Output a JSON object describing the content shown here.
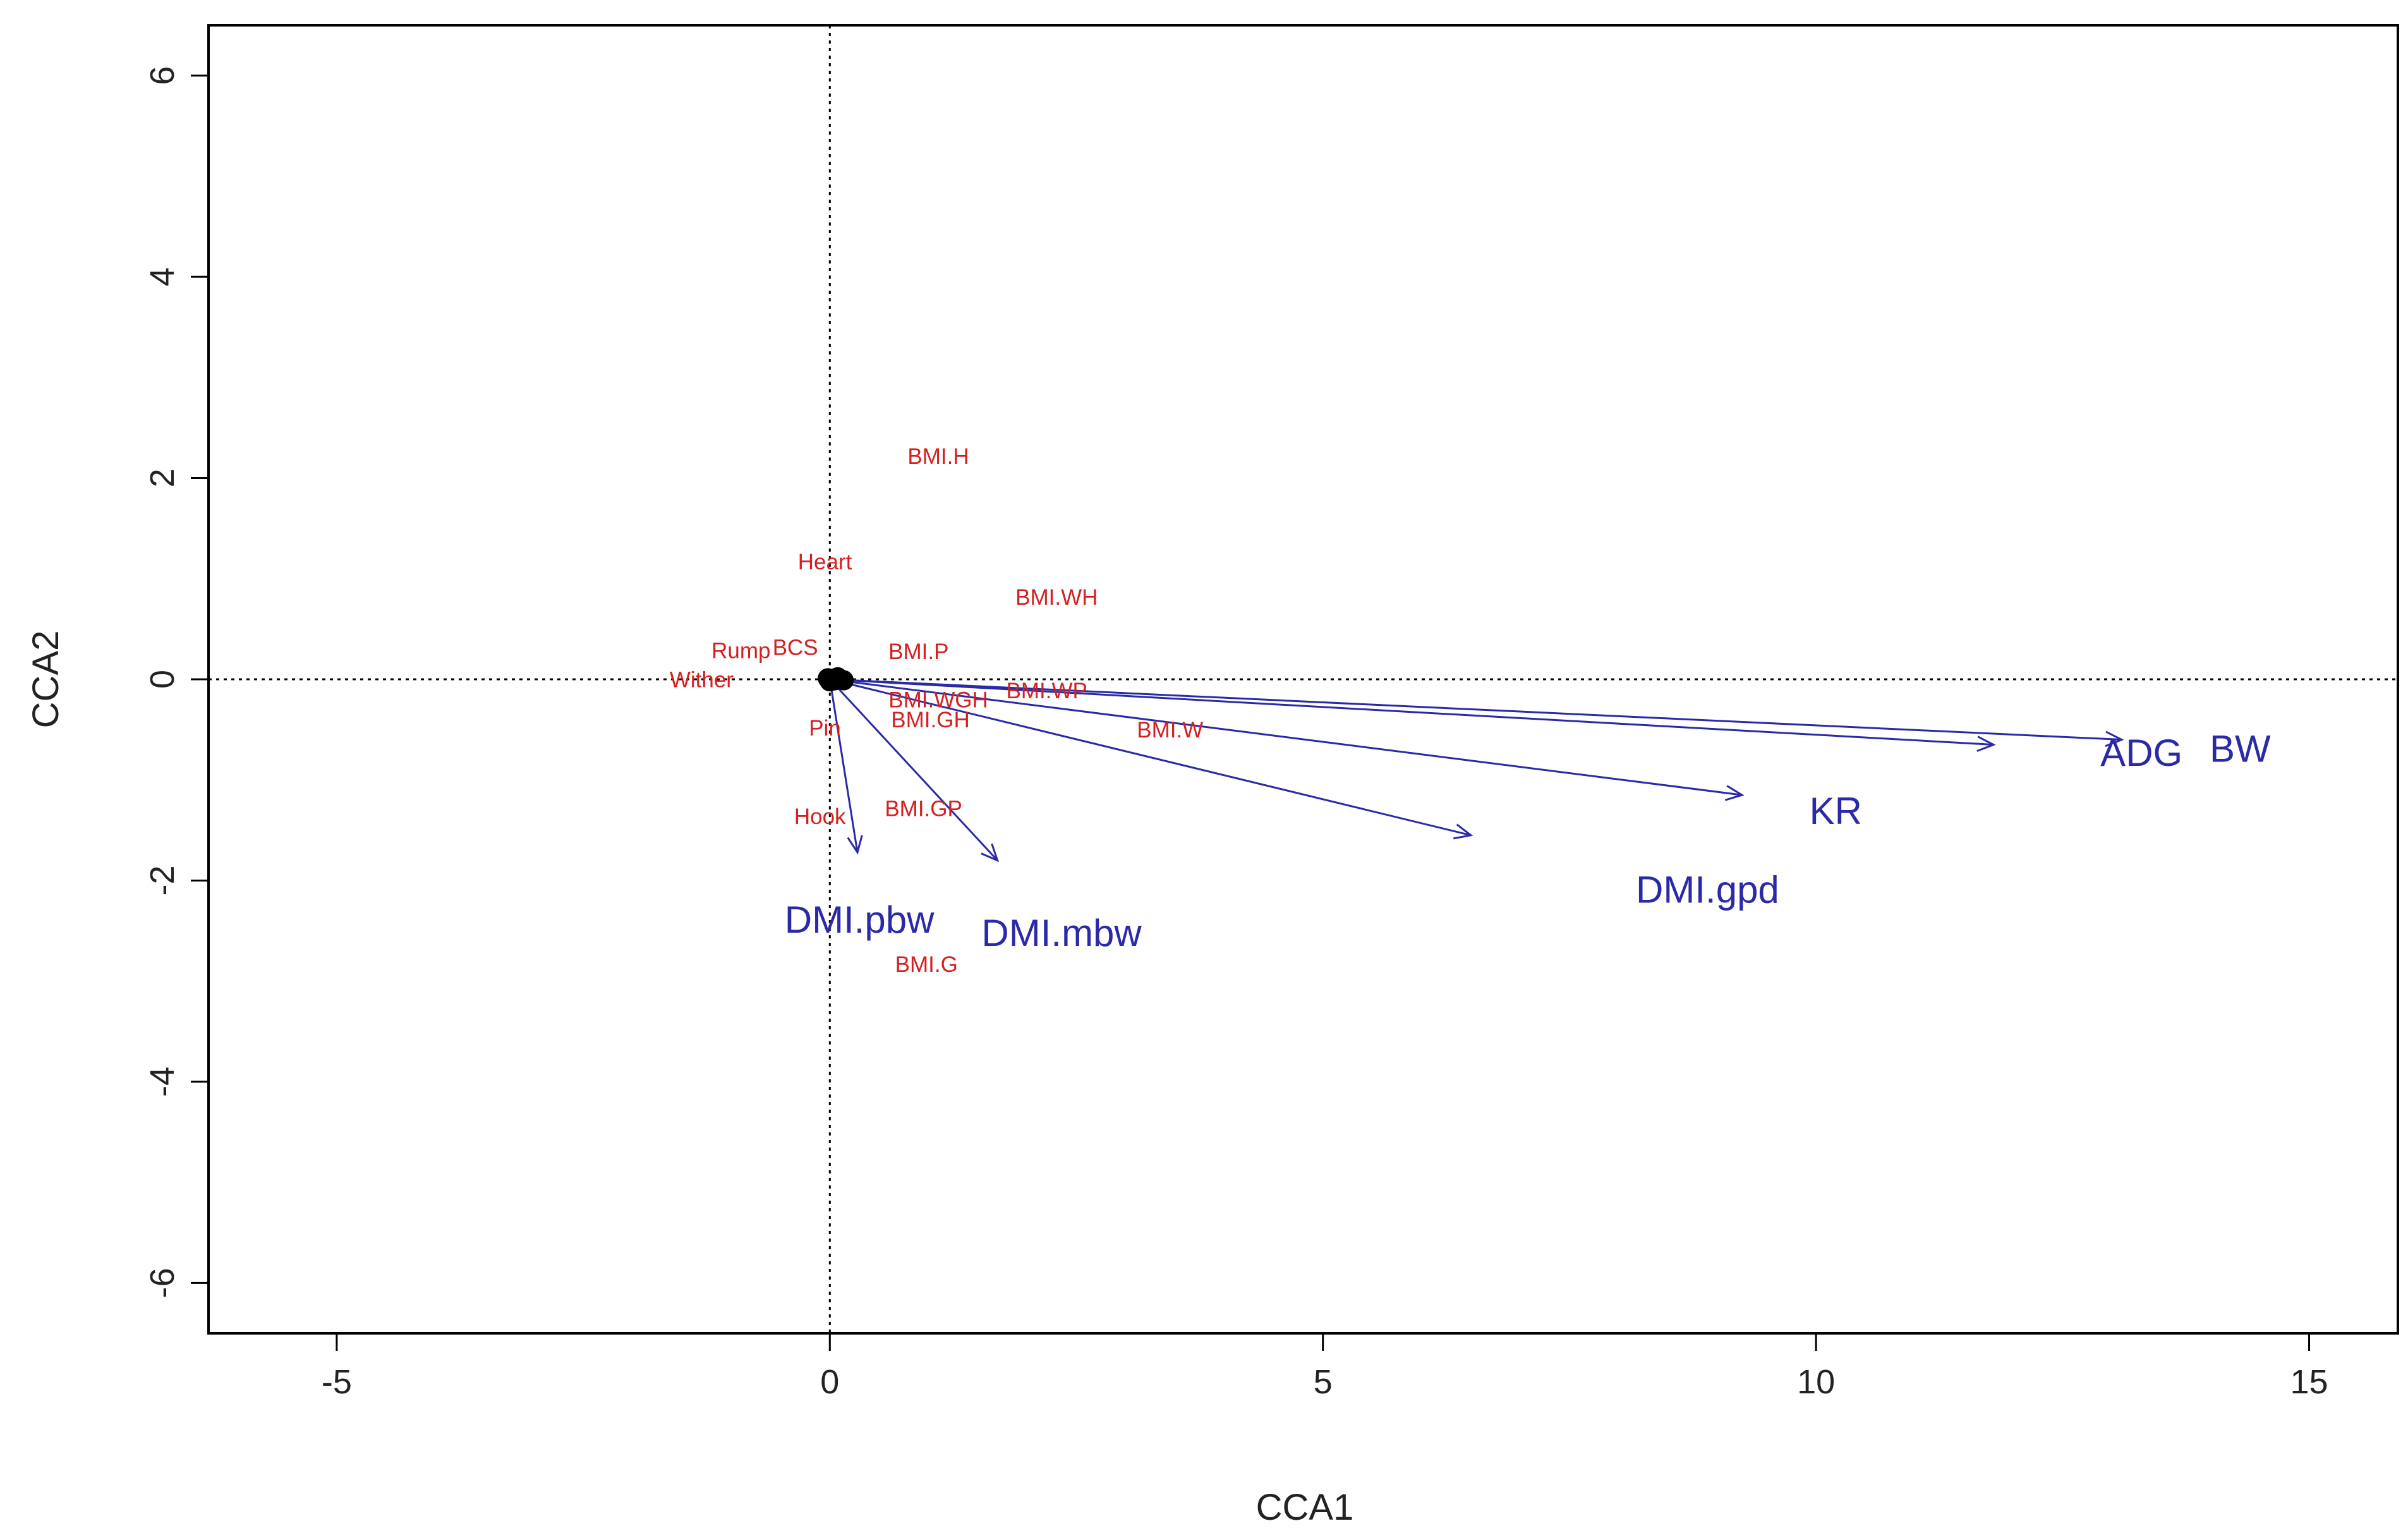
{
  "chart_data": {
    "type": "scatter",
    "title": "",
    "xlabel": "CCA1",
    "ylabel": "CCA2",
    "xlim": [
      -6.3,
      15.9
    ],
    "ylim": [
      -6.5,
      6.5
    ],
    "xticks": [
      -5,
      0,
      5,
      10,
      15
    ],
    "yticks": [
      -6,
      -4,
      -2,
      0,
      2,
      4,
      6
    ],
    "xtick_labels": [
      "-5",
      "0",
      "5",
      "10",
      "15"
    ],
    "ytick_labels": [
      "-6",
      "-4",
      "-2",
      "0",
      "2",
      "4",
      "6"
    ],
    "reference_lines": {
      "x": 0,
      "y": 0,
      "style": "dotted"
    },
    "site_color": "#d42020",
    "arrow_color": "#2a2aa8",
    "sites": [
      {
        "label": "BMI.H",
        "x": 1.1,
        "y": 2.2
      },
      {
        "label": "Heart",
        "x": -0.05,
        "y": 1.15
      },
      {
        "label": "BMI.WH",
        "x": 2.3,
        "y": 0.8
      },
      {
        "label": "Rump",
        "x": -0.9,
        "y": 0.27
      },
      {
        "label": "BCS",
        "x": -0.35,
        "y": 0.3
      },
      {
        "label": "BMI.P",
        "x": 0.9,
        "y": 0.26
      },
      {
        "label": "Wither",
        "x": -1.3,
        "y": -0.02
      },
      {
        "label": "BMI.WP",
        "x": 2.2,
        "y": -0.13
      },
      {
        "label": "BMI.WGH",
        "x": 1.1,
        "y": -0.22
      },
      {
        "label": "BMI.GH",
        "x": 1.02,
        "y": -0.42
      },
      {
        "label": "Pin",
        "x": -0.05,
        "y": -0.5
      },
      {
        "label": "BMI.W",
        "x": 3.45,
        "y": -0.52
      },
      {
        "label": "BMI.GP",
        "x": 0.95,
        "y": -1.3
      },
      {
        "label": "Hook",
        "x": -0.1,
        "y": -1.38
      },
      {
        "label": "BMI.G",
        "x": 0.98,
        "y": -2.85
      }
    ],
    "arrows": [
      {
        "label": "BW",
        "x": 13.1,
        "y": -0.6,
        "label_x": 14.3,
        "label_y": -0.72
      },
      {
        "label": "ADG",
        "x": 11.8,
        "y": -0.65,
        "label_x": 13.3,
        "label_y": -0.76
      },
      {
        "label": "KR",
        "x": 9.25,
        "y": -1.15,
        "label_x": 10.2,
        "label_y": -1.34
      },
      {
        "label": "DMI.gpd",
        "x": 6.5,
        "y": -1.55,
        "label_x": 8.9,
        "label_y": -2.12
      },
      {
        "label": "DMI.mbw",
        "x": 1.7,
        "y": -1.8,
        "label_x": 2.35,
        "label_y": -2.55
      },
      {
        "label": "DMI.pbw",
        "x": 0.28,
        "y": -1.72,
        "label_x": 0.3,
        "label_y": -2.42
      }
    ]
  }
}
